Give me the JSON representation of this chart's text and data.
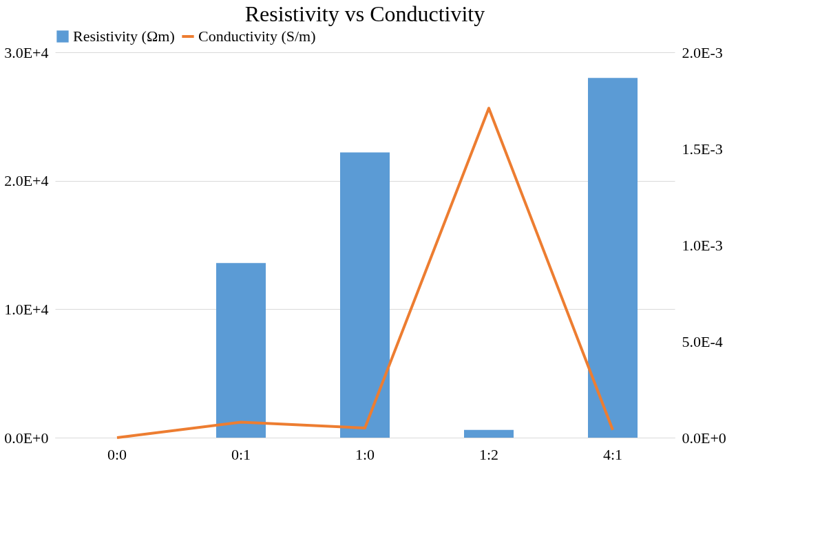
{
  "chart_data": {
    "type": "bar",
    "title": "Resistivity vs Conductivity",
    "categories": [
      "0:0",
      "0:1",
      "1:0",
      "1:2",
      "4:1"
    ],
    "series": [
      {
        "name": "Resistivity (Ωm)",
        "color": "#5b9bd5",
        "values": [
          0,
          13600,
          22200,
          600,
          28000
        ]
      },
      {
        "name": "Conductivity (S/m)",
        "type": "line",
        "axis": "y2",
        "color": "#ed7d31",
        "values": [
          0,
          8e-05,
          5e-05,
          0.00171,
          4e-05
        ]
      }
    ],
    "ylim": [
      0,
      30000
    ],
    "yticks": [
      {
        "value": 0,
        "label": "0.0E+0"
      },
      {
        "value": 10000,
        "label": "1.0E+4"
      },
      {
        "value": 20000,
        "label": "2.0E+4"
      },
      {
        "value": 30000,
        "label": "3.0E+4"
      }
    ],
    "y2lim": [
      0,
      0.002
    ],
    "y2ticks": [
      {
        "value": 0,
        "label": "0.0E+0"
      },
      {
        "value": 0.0005,
        "label": "5.0E-4"
      },
      {
        "value": 0.001,
        "label": "1.0E-3"
      },
      {
        "value": 0.0015,
        "label": "1.5E-3"
      },
      {
        "value": 0.002,
        "label": "2.0E-3"
      }
    ],
    "grid": "y",
    "legend": "top",
    "marker": "none",
    "line_style": "solid"
  }
}
